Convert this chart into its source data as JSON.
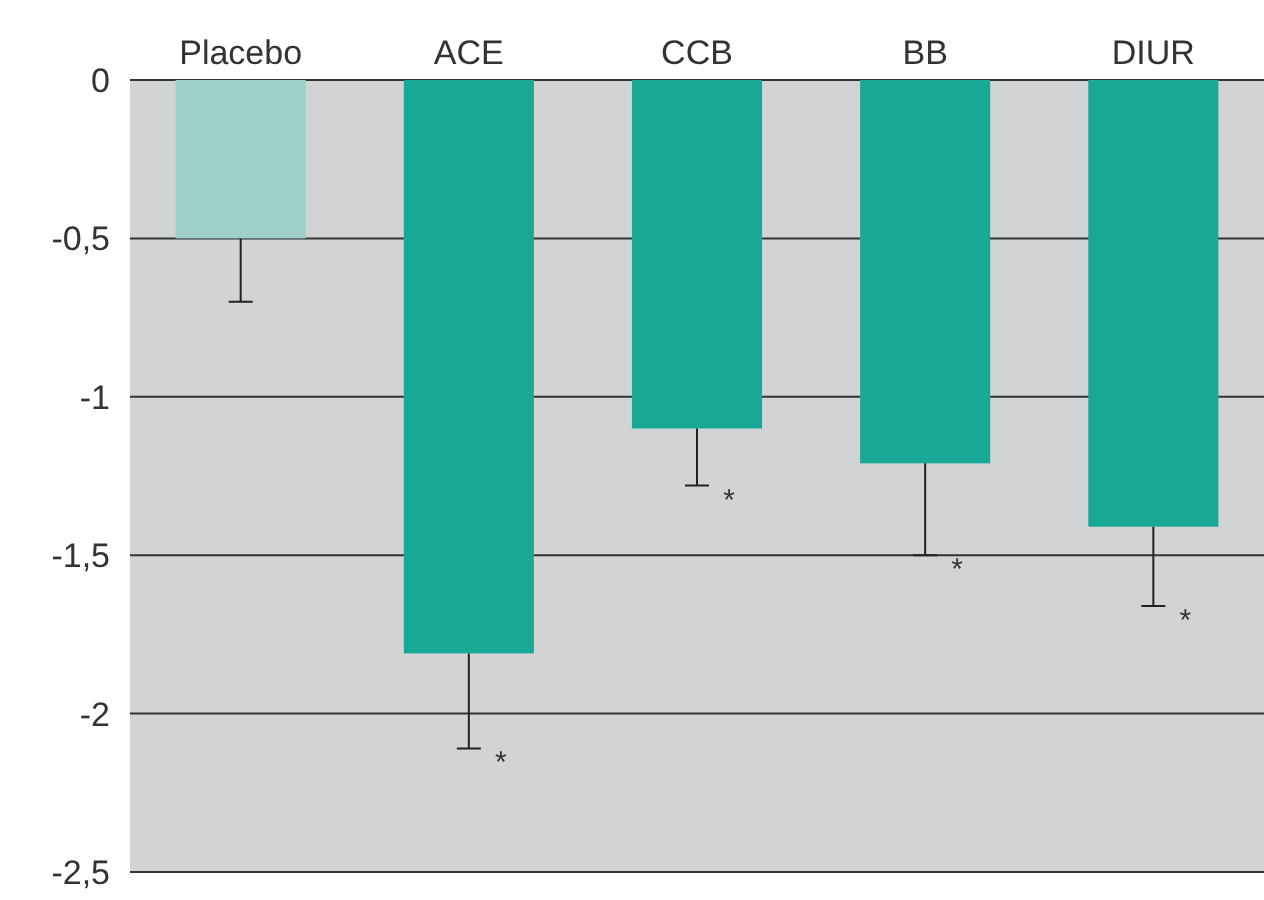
{
  "chart_data": {
    "type": "bar",
    "categories": [
      "Placebo",
      "ACE",
      "CCB",
      "BB",
      "DIUR"
    ],
    "values": [
      -0.5,
      -1.81,
      -1.1,
      -1.21,
      -1.41
    ],
    "colors": [
      "#9dd0c8",
      "#17a896",
      "#17a896",
      "#17a896",
      "#17a896"
    ],
    "errors": [
      [
        -0.7,
        -0.5
      ],
      [
        -2.11,
        -1.81
      ],
      [
        -1.28,
        -1.1
      ],
      [
        -1.5,
        -1.21
      ],
      [
        -1.66,
        -1.41
      ]
    ],
    "ylim": [
      -2.5,
      0
    ],
    "yticks": [
      {
        "value": 0,
        "label": "0"
      },
      {
        "value": -0.5,
        "label": "-0,5"
      },
      {
        "value": -1,
        "label": "-1"
      },
      {
        "value": -1.5,
        "label": "-1,5"
      },
      {
        "value": -2,
        "label": "-2"
      },
      {
        "value": -2.5,
        "label": "-2,5"
      }
    ],
    "grid": "y",
    "annotations": [
      {
        "text": "*",
        "x": "ACE",
        "y": -2.11
      },
      {
        "text": "*",
        "x": "CCB",
        "y": -1.28
      },
      {
        "text": "*",
        "x": "BB",
        "y": -1.5
      },
      {
        "text": "*",
        "x": "DIUR",
        "y": -1.66
      }
    ]
  }
}
